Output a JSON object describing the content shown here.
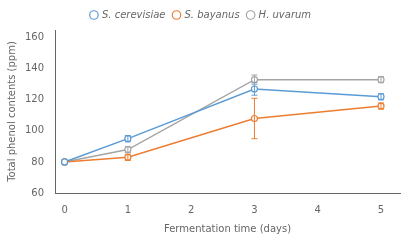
{
  "chart_data": {
    "type": "line",
    "x": [
      0,
      1,
      3,
      5
    ],
    "series": [
      {
        "name": "S. cerevisiae",
        "color": "#5b9bd5",
        "values": [
          80,
          95,
          127,
          122
        ],
        "errors": [
          0,
          2,
          4,
          2
        ],
        "marker": "o"
      },
      {
        "name": "S. bayanus",
        "color": "#ed7d31",
        "values": [
          80,
          83,
          108,
          116
        ],
        "errors": [
          0,
          2,
          13,
          2
        ],
        "marker": "o"
      },
      {
        "name": "H. uvarum",
        "color": "#a5a5a5",
        "values": [
          80,
          88,
          133,
          133
        ],
        "errors": [
          0,
          2,
          3,
          2
        ],
        "marker": "o"
      }
    ],
    "xlabel": "Fermentation time (days)",
    "ylabel": "Total phenol contents (ppm)",
    "xlim": [
      -0.15,
      5.3
    ],
    "xticks": [
      0,
      1,
      2,
      3,
      4,
      5
    ],
    "ylim": [
      60,
      165
    ],
    "yticks": [
      60,
      80,
      100,
      120,
      140,
      160
    ],
    "grid": false,
    "legend": "top"
  }
}
